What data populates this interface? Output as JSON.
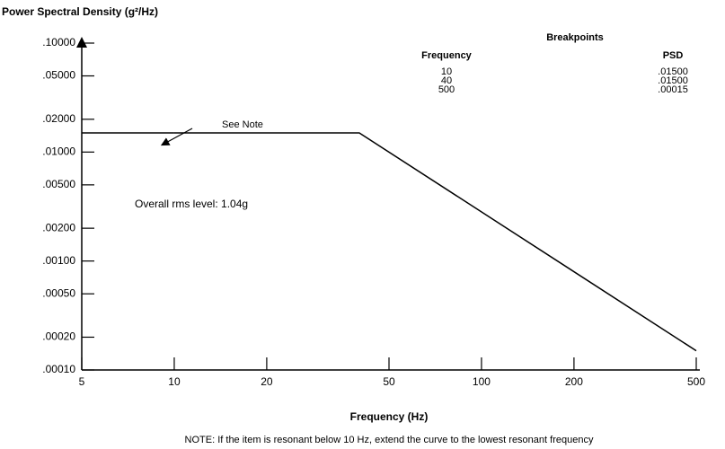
{
  "chart_data": {
    "type": "line",
    "title": "Power Spectral Density (g²/Hz)",
    "xlabel": "Frequency (Hz)",
    "x": [
      10,
      40,
      500
    ],
    "series": [
      {
        "name": null,
        "color": "#000000",
        "values": [
          0.015,
          0.015,
          0.00015
        ]
      }
    ],
    "xlim": [
      5,
      500
    ],
    "xticks": [
      5,
      10,
      20,
      50,
      100,
      200,
      500
    ],
    "ylim": [
      0.0001,
      0.1
    ],
    "yticks": [
      {
        "value": 0.1,
        "label": ".10000"
      },
      {
        "value": 0.05,
        "label": ".05000"
      },
      {
        "value": 0.02,
        "label": ".02000"
      },
      {
        "value": 0.01,
        "label": ".01000"
      },
      {
        "value": 0.005,
        "label": ".00500"
      },
      {
        "value": 0.002,
        "label": ".00200"
      },
      {
        "value": 0.001,
        "label": ".00100"
      },
      {
        "value": 0.0005,
        "label": ".00050"
      },
      {
        "value": 0.0002,
        "label": ".00020"
      },
      {
        "value": 0.0001,
        "label": ".00010"
      }
    ],
    "log_x": true,
    "log_y": true,
    "breakpoints": {
      "title": "Breakpoints",
      "columns": [
        "Frequency",
        "PSD"
      ],
      "rows": [
        [
          "10",
          ".01500"
        ],
        [
          "40",
          ".01500"
        ],
        [
          "500",
          ".00015"
        ]
      ]
    },
    "annotations": [
      "See Note",
      "Overall rms level: 1.04g"
    ],
    "note": "NOTE: If the item is resonant below 10 Hz, extend the curve to the lowest resonant frequency"
  }
}
